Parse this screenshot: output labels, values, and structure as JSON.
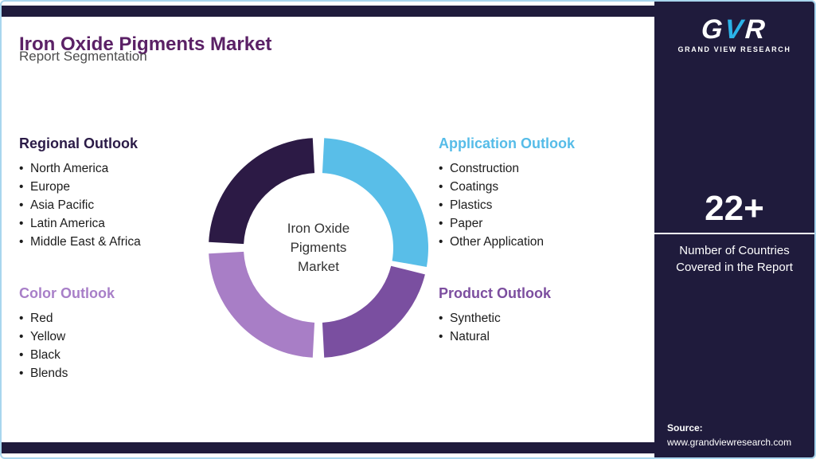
{
  "header": {
    "title": "Iron Oxide Pigments Market",
    "subtitle": "Report Segmentation"
  },
  "sections": [
    {
      "title": "Regional Outlook",
      "color": "#2B1B47",
      "items": [
        "North America",
        "Europe",
        "Asia Pacific",
        "Latin America",
        "Middle East & Africa"
      ]
    },
    {
      "title": "Application Outlook",
      "color": "#56BCE8",
      "items": [
        "Construction",
        "Coatings",
        "Plastics",
        "Paper",
        "Other Application"
      ]
    },
    {
      "title": "Color Outlook",
      "color": "#A87FC8",
      "items": [
        "Red",
        "Yellow",
        "Black",
        "Blends"
      ]
    },
    {
      "title": "Product Outlook",
      "color": "#7C4E9F",
      "items": [
        "Synthetic",
        "Natural"
      ]
    }
  ],
  "donut": {
    "center_label": "Iron Oxide\nPigments\nMarket",
    "segments": [
      {
        "label": "Application Outlook",
        "color": "#59BEE8",
        "start": 3,
        "end": 100
      },
      {
        "label": "Product Outlook",
        "color": "#7A4FA0",
        "start": 104,
        "end": 177
      },
      {
        "label": "Color Outlook",
        "color": "#A87EC6",
        "start": 183,
        "end": 267
      },
      {
        "label": "Regional Outlook",
        "color": "#2C1A45",
        "start": 273,
        "end": 357
      }
    ]
  },
  "sidebar": {
    "logo_letters": [
      "G",
      "V",
      "R"
    ],
    "logo_name": "GRAND VIEW RESEARCH",
    "stat_number": "22+",
    "stat_caption": "Number of Countries\nCovered in the Report",
    "source_label": "Source:",
    "source_url": "www.grandviewresearch.com"
  },
  "colors": {
    "navy": "#1F1B3C",
    "accent_blue": "#2BB3E8",
    "border_blue": "#A9D6EE",
    "title_purple": "#5B2166"
  }
}
